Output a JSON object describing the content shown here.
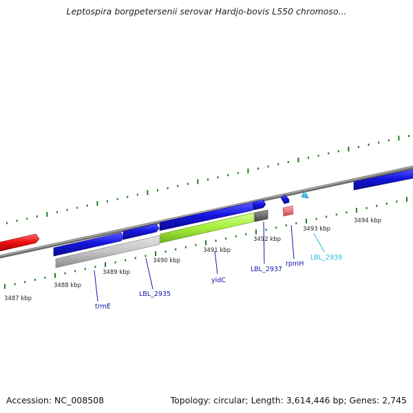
{
  "title": "Leptospira borgpetersenii serovar Hardjo-bovis L550 chromoso...",
  "footer": {
    "accession": "Accession: NC_008508",
    "summary": "Topology: circular; Length: 3,614,446 bp; Genes: 2,745"
  },
  "colors": {
    "backbone": "#8a8a8a",
    "tick": "#1f7a1f",
    "gene_forward": "#1515e0",
    "gene_red": "#ee1111",
    "cds_green": "#a6ef3a",
    "cds_gray": "#c4c4c4",
    "cds_dark": "#707070",
    "cds_pink": "#e97b83",
    "label_blue": "#1111aa",
    "label_cyan": "#2ab5dd"
  },
  "positions_kbp": [
    {
      "label": "3487 kbp"
    },
    {
      "label": "3488 kbp"
    },
    {
      "label": "3489 kbp"
    },
    {
      "label": "3490 kbp"
    },
    {
      "label": "3491 kbp"
    },
    {
      "label": "3492 kbp"
    },
    {
      "label": "3493 kbp"
    },
    {
      "label": "3494 kbp"
    }
  ],
  "gene_labels": [
    {
      "name": "trmE",
      "color": "label_blue"
    },
    {
      "name": "LBL_2935",
      "color": "label_blue"
    },
    {
      "name": "yidC",
      "color": "label_blue"
    },
    {
      "name": "LBL_2937",
      "color": "label_blue"
    },
    {
      "name": "rpmH",
      "color": "label_blue"
    },
    {
      "name": "LBL_2939",
      "color": "label_cyan"
    }
  ]
}
